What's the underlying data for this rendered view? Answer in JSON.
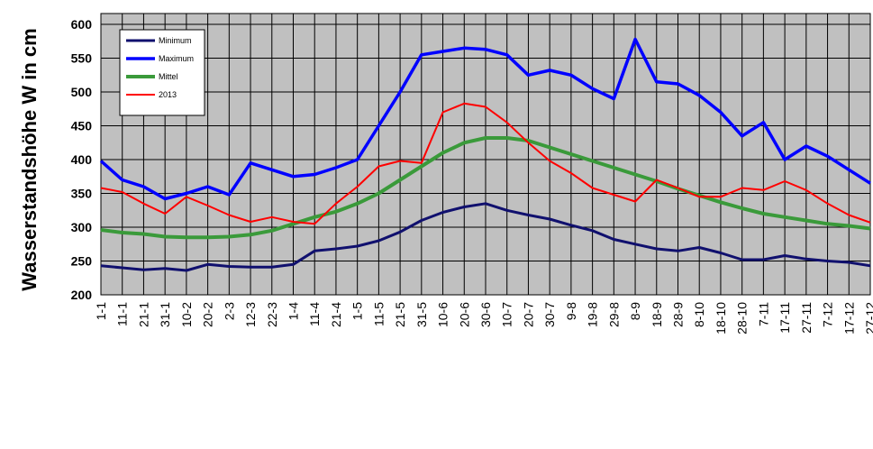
{
  "chart_data": {
    "type": "line",
    "y_label": "Wasserstandshöhe W in cm",
    "categories": [
      "1-1",
      "11-1",
      "21-1",
      "31-1",
      "10-2",
      "20-2",
      "2-3",
      "12-3",
      "22-3",
      "1-4",
      "11-4",
      "21-4",
      "1-5",
      "11-5",
      "21-5",
      "31-5",
      "10-6",
      "20-6",
      "30-6",
      "10-7",
      "20-7",
      "30-7",
      "9-8",
      "19-8",
      "29-8",
      "8-9",
      "18-9",
      "28-9",
      "8-10",
      "18-10",
      "28-10",
      "7-11",
      "17-11",
      "27-11",
      "7-12",
      "17-12",
      "27-12"
    ],
    "series": [
      {
        "name": "Minimum",
        "color": "#10106e",
        "width": 3,
        "values": [
          243,
          240,
          237,
          239,
          236,
          245,
          242,
          241,
          241,
          245,
          265,
          268,
          272,
          280,
          293,
          310,
          322,
          330,
          335,
          325,
          318,
          312,
          303,
          295,
          282,
          275,
          268,
          265,
          270,
          262,
          252,
          252,
          258,
          253,
          250,
          248,
          243
        ]
      },
      {
        "name": "Maximum",
        "color": "#0000ff",
        "width": 3.5,
        "values": [
          398,
          370,
          360,
          342,
          350,
          360,
          348,
          395,
          385,
          375,
          378,
          388,
          400,
          450,
          500,
          555,
          560,
          565,
          563,
          555,
          525,
          532,
          525,
          505,
          490,
          578,
          515,
          512,
          495,
          470,
          435,
          455,
          400,
          420,
          405,
          385,
          365
        ]
      },
      {
        "name": "Mittel",
        "color": "#3a9a3a",
        "width": 4,
        "values": [
          296,
          292,
          290,
          286,
          285,
          285,
          286,
          289,
          295,
          305,
          315,
          323,
          335,
          350,
          370,
          390,
          410,
          425,
          432,
          432,
          428,
          418,
          408,
          398,
          388,
          378,
          368,
          357,
          347,
          337,
          328,
          320,
          315,
          310,
          305,
          302,
          298
        ]
      },
      {
        "name": "2013",
        "color": "#ff0000",
        "width": 2,
        "values": [
          358,
          352,
          335,
          320,
          345,
          332,
          318,
          308,
          315,
          308,
          305,
          335,
          360,
          390,
          398,
          395,
          470,
          483,
          478,
          455,
          425,
          398,
          380,
          358,
          348,
          338,
          370,
          358,
          345,
          345,
          358,
          355,
          368,
          355,
          335,
          318,
          307
        ]
      }
    ],
    "ylim": [
      200,
      600
    ],
    "yticks": [
      200,
      250,
      300,
      350,
      400,
      450,
      500,
      550,
      600
    ],
    "grid": true
  }
}
